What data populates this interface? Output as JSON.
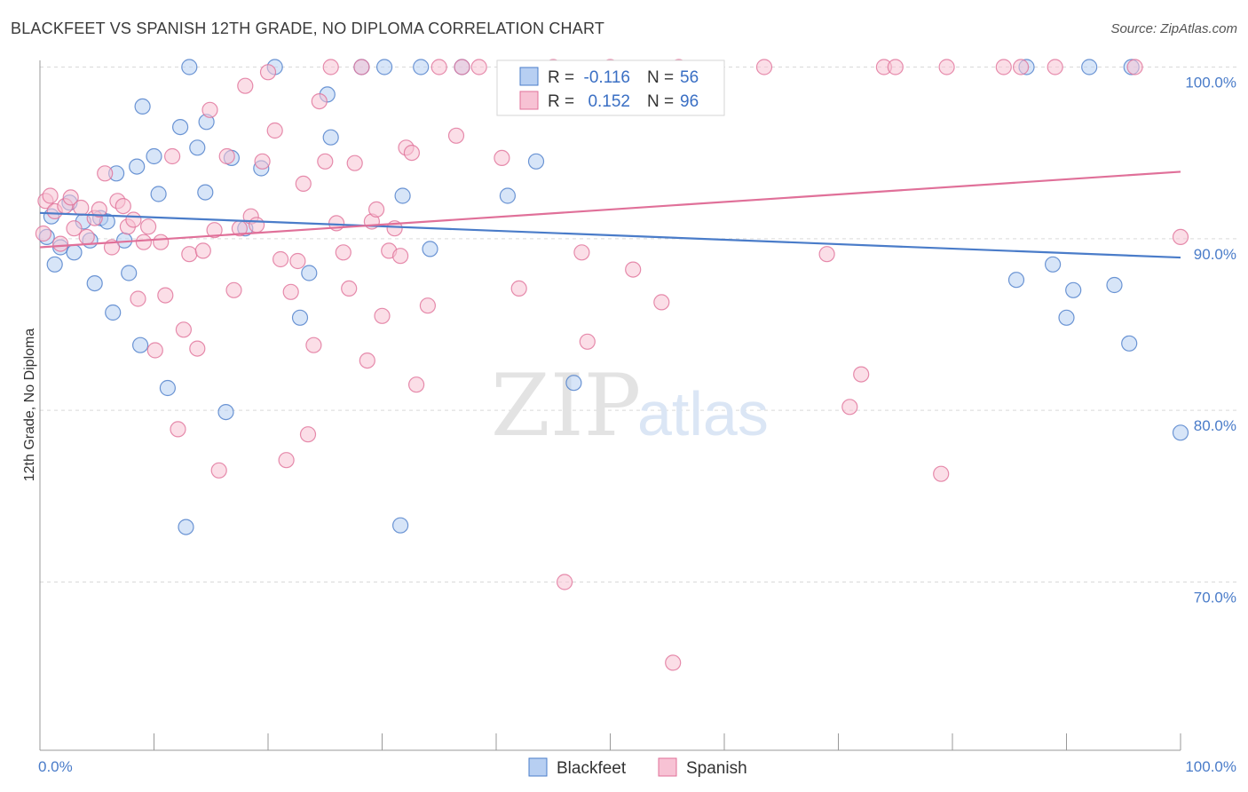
{
  "title": "BLACKFEET VS SPANISH 12TH GRADE, NO DIPLOMA CORRELATION CHART",
  "source": "Source: ZipAtlas.com",
  "watermark": {
    "zip": "ZIP",
    "atlas": "atlas"
  },
  "legend": {
    "r_label": "R =",
    "n_label": "N =",
    "rows": [
      {
        "series": "Blackfeet",
        "r": "-0.116",
        "n": "56"
      },
      {
        "series": "Spanish",
        "r": "0.152",
        "n": "96"
      }
    ]
  },
  "chart_data": {
    "type": "scatter",
    "title": "BLACKFEET VS SPANISH 12TH GRADE, NO DIPLOMA CORRELATION CHART",
    "xlabel": "",
    "ylabel": "12th Grade, No Diploma",
    "xlim": [
      0,
      100
    ],
    "ylim": [
      60.2,
      100.8
    ],
    "x_tick_labels": [
      "0.0%",
      "100.0%"
    ],
    "y_ticks": [
      {
        "value": 70,
        "label": "70.0%"
      },
      {
        "value": 80,
        "label": "80.0%"
      },
      {
        "value": 90,
        "label": "90.0%"
      },
      {
        "value": 100,
        "label": "100.0%"
      }
    ],
    "grid": true,
    "series": [
      {
        "name": "Blackfeet",
        "color": "#4a7cc9",
        "fill": "#b7cff2",
        "trend": {
          "x": [
            0,
            100
          ],
          "y": [
            91.5,
            88.9
          ]
        },
        "points": [
          [
            0.6,
            90.1
          ],
          [
            1.0,
            91.3
          ],
          [
            1.3,
            88.5
          ],
          [
            1.8,
            89.5
          ],
          [
            2.6,
            92.1
          ],
          [
            3.0,
            89.2
          ],
          [
            3.8,
            91.0
          ],
          [
            4.4,
            89.9
          ],
          [
            4.8,
            87.4
          ],
          [
            5.3,
            91.2
          ],
          [
            5.9,
            91.0
          ],
          [
            6.4,
            85.7
          ],
          [
            6.7,
            93.8
          ],
          [
            7.4,
            89.9
          ],
          [
            7.8,
            88.0
          ],
          [
            8.5,
            94.2
          ],
          [
            8.8,
            83.8
          ],
          [
            9.0,
            97.7
          ],
          [
            10.0,
            94.8
          ],
          [
            10.4,
            92.6
          ],
          [
            11.2,
            81.3
          ],
          [
            12.3,
            96.5
          ],
          [
            12.8,
            73.2
          ],
          [
            13.1,
            100.0
          ],
          [
            13.8,
            95.3
          ],
          [
            14.5,
            92.7
          ],
          [
            14.6,
            96.8
          ],
          [
            16.3,
            79.9
          ],
          [
            16.8,
            94.7
          ],
          [
            18.0,
            90.6
          ],
          [
            19.4,
            94.1
          ],
          [
            20.6,
            100.0
          ],
          [
            22.8,
            85.4
          ],
          [
            23.6,
            88.0
          ],
          [
            25.2,
            98.4
          ],
          [
            25.5,
            95.9
          ],
          [
            28.2,
            100.0
          ],
          [
            31.6,
            73.3
          ],
          [
            31.8,
            92.5
          ],
          [
            33.4,
            100.0
          ],
          [
            34.2,
            89.4
          ],
          [
            37.0,
            100.0
          ],
          [
            41.0,
            92.5
          ],
          [
            43.5,
            94.5
          ],
          [
            46.8,
            81.6
          ],
          [
            90.0,
            85.4
          ],
          [
            85.6,
            87.6
          ],
          [
            88.8,
            88.5
          ],
          [
            86.5,
            100.0
          ],
          [
            90.6,
            87.0
          ],
          [
            92.0,
            100.0
          ],
          [
            94.2,
            87.3
          ],
          [
            95.5,
            83.9
          ],
          [
            95.7,
            100.0
          ],
          [
            100.0,
            78.7
          ],
          [
            30.2,
            100.0
          ]
        ]
      },
      {
        "name": "Spanish",
        "color": "#e07099",
        "fill": "#f7c2d4",
        "trend": {
          "x": [
            0,
            100
          ],
          "y": [
            89.5,
            93.9
          ]
        },
        "points": [
          [
            0.3,
            90.3
          ],
          [
            0.5,
            92.2
          ],
          [
            0.9,
            92.5
          ],
          [
            1.3,
            91.6
          ],
          [
            1.8,
            89.7
          ],
          [
            2.2,
            91.9
          ],
          [
            2.7,
            92.4
          ],
          [
            3.0,
            90.6
          ],
          [
            3.6,
            91.8
          ],
          [
            4.1,
            90.1
          ],
          [
            4.8,
            91.2
          ],
          [
            5.2,
            91.7
          ],
          [
            5.7,
            93.8
          ],
          [
            6.3,
            89.5
          ],
          [
            6.8,
            92.2
          ],
          [
            7.3,
            91.9
          ],
          [
            7.7,
            90.7
          ],
          [
            8.2,
            91.1
          ],
          [
            8.6,
            86.5
          ],
          [
            9.1,
            89.8
          ],
          [
            9.5,
            90.7
          ],
          [
            10.1,
            83.5
          ],
          [
            10.6,
            89.8
          ],
          [
            11.0,
            86.7
          ],
          [
            11.6,
            94.8
          ],
          [
            12.1,
            78.9
          ],
          [
            12.6,
            84.7
          ],
          [
            13.1,
            89.1
          ],
          [
            13.8,
            83.6
          ],
          [
            14.3,
            89.3
          ],
          [
            14.9,
            97.5
          ],
          [
            15.3,
            90.5
          ],
          [
            15.7,
            76.5
          ],
          [
            16.4,
            94.8
          ],
          [
            17.0,
            87.0
          ],
          [
            17.5,
            90.6
          ],
          [
            18.0,
            98.9
          ],
          [
            18.5,
            91.3
          ],
          [
            19.0,
            90.8
          ],
          [
            19.5,
            94.5
          ],
          [
            20.0,
            99.7
          ],
          [
            20.6,
            96.3
          ],
          [
            21.1,
            88.8
          ],
          [
            21.6,
            77.1
          ],
          [
            22.0,
            86.9
          ],
          [
            22.6,
            88.7
          ],
          [
            23.1,
            93.2
          ],
          [
            23.5,
            78.6
          ],
          [
            24.0,
            83.8
          ],
          [
            24.5,
            98.0
          ],
          [
            25.0,
            94.5
          ],
          [
            25.5,
            100.0
          ],
          [
            26.0,
            90.9
          ],
          [
            26.6,
            89.2
          ],
          [
            27.1,
            87.1
          ],
          [
            27.6,
            94.4
          ],
          [
            28.2,
            100.0
          ],
          [
            28.7,
            82.9
          ],
          [
            29.1,
            91.0
          ],
          [
            29.5,
            91.7
          ],
          [
            30.0,
            85.5
          ],
          [
            30.6,
            89.3
          ],
          [
            31.1,
            90.6
          ],
          [
            31.6,
            89.0
          ],
          [
            32.1,
            95.3
          ],
          [
            32.6,
            95.0
          ],
          [
            33.0,
            81.5
          ],
          [
            34.0,
            86.1
          ],
          [
            35.0,
            100.0
          ],
          [
            36.5,
            96.0
          ],
          [
            37.0,
            100.0
          ],
          [
            38.5,
            100.0
          ],
          [
            40.5,
            94.7
          ],
          [
            42.0,
            87.1
          ],
          [
            45.0,
            100.0
          ],
          [
            46.0,
            70.0
          ],
          [
            47.5,
            89.2
          ],
          [
            48.0,
            84.0
          ],
          [
            50.0,
            100.0
          ],
          [
            52.0,
            88.2
          ],
          [
            54.5,
            86.3
          ],
          [
            55.5,
            65.3
          ],
          [
            56.0,
            100.0
          ],
          [
            63.5,
            100.0
          ],
          [
            69.0,
            89.1
          ],
          [
            71.0,
            80.2
          ],
          [
            72.0,
            82.1
          ],
          [
            74.0,
            100.0
          ],
          [
            75.0,
            100.0
          ],
          [
            79.0,
            76.3
          ],
          [
            79.5,
            100.0
          ],
          [
            84.5,
            100.0
          ],
          [
            86.0,
            100.0
          ],
          [
            89.0,
            100.0
          ],
          [
            96.0,
            100.0
          ],
          [
            100.0,
            90.1
          ]
        ]
      }
    ]
  }
}
